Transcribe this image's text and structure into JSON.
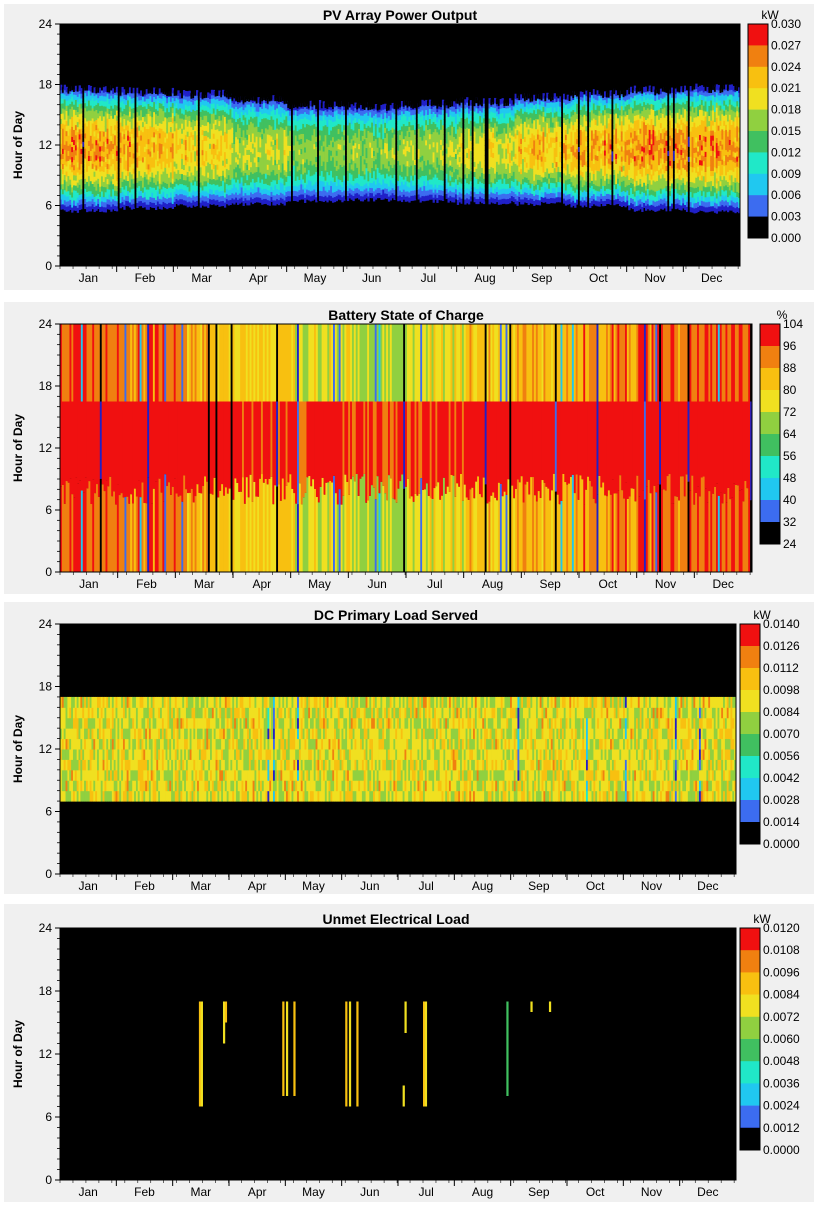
{
  "chart_data": [
    {
      "type": "heatmap",
      "title": "PV Array Power Output",
      "ylabel": "Hour of Day",
      "xlabel": "",
      "x_tick_labels": [
        "Jan",
        "Feb",
        "Mar",
        "Apr",
        "May",
        "Jun",
        "Jul",
        "Aug",
        "Sep",
        "Oct",
        "Nov",
        "Dec"
      ],
      "y_ticks": [
        0,
        6,
        12,
        18,
        24
      ],
      "ylim": [
        0,
        24
      ],
      "colorbar_unit": "kW",
      "colorbar_ticks": [
        "0.030",
        "0.027",
        "0.024",
        "0.021",
        "0.018",
        "0.015",
        "0.012",
        "0.009",
        "0.006",
        "0.003",
        "0.000"
      ],
      "colormap": [
        "#000000",
        "#2020c8",
        "#3c6cf0",
        "#20c8f0",
        "#20e8c8",
        "#40c060",
        "#90d040",
        "#f0e020",
        "#f8c010",
        "#f08010",
        "#f01010"
      ],
      "monthly_profile": {
        "months": [
          "Jan",
          "Feb",
          "Mar",
          "Apr",
          "May",
          "Jun",
          "Jul",
          "Aug",
          "Sep",
          "Oct",
          "Nov",
          "Dec"
        ],
        "sunrise_hour": [
          5.5,
          5.8,
          6.0,
          6.2,
          6.5,
          6.6,
          6.5,
          6.3,
          6.2,
          6.0,
          5.6,
          5.4
        ],
        "sunset_hour": [
          17.8,
          17.6,
          17.3,
          16.8,
          16.3,
          16.1,
          16.3,
          16.6,
          17.0,
          17.4,
          17.7,
          17.9
        ],
        "peak_kW": [
          0.027,
          0.026,
          0.024,
          0.021,
          0.019,
          0.019,
          0.02,
          0.022,
          0.025,
          0.026,
          0.027,
          0.027
        ]
      }
    },
    {
      "type": "heatmap",
      "title": "Battery State of Charge",
      "ylabel": "Hour of Day",
      "xlabel": "",
      "x_tick_labels": [
        "Jan",
        "Feb",
        "Mar",
        "Apr",
        "May",
        "Jun",
        "Jul",
        "Aug",
        "Sep",
        "Oct",
        "Nov",
        "Dec"
      ],
      "y_ticks": [
        0,
        6,
        12,
        18,
        24
      ],
      "ylim": [
        0,
        24
      ],
      "colorbar_unit": "%",
      "colorbar_ticks": [
        "104",
        "96",
        "88",
        "80",
        "72",
        "64",
        "56",
        "48",
        "40",
        "32",
        "24"
      ],
      "colormap": [
        "#000000",
        "#2020c8",
        "#3c6cf0",
        "#20c8f0",
        "#20e8c8",
        "#40c060",
        "#90d040",
        "#f0e020",
        "#f8c010",
        "#f08010",
        "#f01010"
      ],
      "monthly_profile": {
        "months": [
          "Jan",
          "Feb",
          "Mar",
          "Apr",
          "May",
          "Jun",
          "Jul",
          "Aug",
          "Sep",
          "Oct",
          "Nov",
          "Dec"
        ],
        "night_soc_pct": [
          96,
          94,
          86,
          82,
          78,
          76,
          78,
          84,
          88,
          92,
          96,
          97
        ],
        "day_soc_pct": [
          101,
          101,
          100,
          99,
          98,
          97,
          98,
          100,
          100,
          101,
          101,
          101
        ]
      }
    },
    {
      "type": "heatmap",
      "title": "DC Primary Load Served",
      "ylabel": "Hour of Day",
      "xlabel": "",
      "x_tick_labels": [
        "Jan",
        "Feb",
        "Mar",
        "Apr",
        "May",
        "Jun",
        "Jul",
        "Aug",
        "Sep",
        "Oct",
        "Nov",
        "Dec"
      ],
      "y_ticks": [
        0,
        6,
        12,
        18,
        24
      ],
      "ylim": [
        0,
        24
      ],
      "colorbar_unit": "kW",
      "colorbar_ticks": [
        "0.0140",
        "0.0126",
        "0.0112",
        "0.0098",
        "0.0084",
        "0.0070",
        "0.0056",
        "0.0042",
        "0.0028",
        "0.0014",
        "0.0000"
      ],
      "colormap": [
        "#000000",
        "#2020c8",
        "#3c6cf0",
        "#20c8f0",
        "#20e8c8",
        "#40c060",
        "#90d040",
        "#f0e020",
        "#f8c010",
        "#f08010",
        "#f01010"
      ],
      "load_hours": [
        7,
        17
      ],
      "typical_kW": 0.0098
    },
    {
      "type": "heatmap",
      "title": "Unmet Electrical Load",
      "ylabel": "Hour of Day",
      "xlabel": "",
      "x_tick_labels": [
        "Jan",
        "Feb",
        "Mar",
        "Apr",
        "May",
        "Jun",
        "Jul",
        "Aug",
        "Sep",
        "Oct",
        "Nov",
        "Dec"
      ],
      "y_ticks": [
        0,
        6,
        12,
        18,
        24
      ],
      "ylim": [
        0,
        24
      ],
      "colorbar_unit": "kW",
      "colorbar_ticks": [
        "0.0120",
        "0.0108",
        "0.0096",
        "0.0084",
        "0.0072",
        "0.0060",
        "0.0048",
        "0.0036",
        "0.0024",
        "0.0012",
        "0.0000"
      ],
      "colormap": [
        "#000000",
        "#2020c8",
        "#3c6cf0",
        "#20c8f0",
        "#20e8c8",
        "#40c060",
        "#90d040",
        "#f0e020",
        "#f8c010",
        "#f08010",
        "#f01010"
      ],
      "unmet_events": [
        {
          "day": 75,
          "from_hour": 7,
          "to_hour": 17,
          "kW": 0.009
        },
        {
          "day": 76,
          "from_hour": 7,
          "to_hour": 17,
          "kW": 0.0084
        },
        {
          "day": 88,
          "from_hour": 13,
          "to_hour": 17,
          "kW": 0.008
        },
        {
          "day": 89,
          "from_hour": 15,
          "to_hour": 17,
          "kW": 0.0096
        },
        {
          "day": 120,
          "from_hour": 8,
          "to_hour": 17,
          "kW": 0.0088
        },
        {
          "day": 122,
          "from_hour": 8,
          "to_hour": 17,
          "kW": 0.0084
        },
        {
          "day": 126,
          "from_hour": 8,
          "to_hour": 17,
          "kW": 0.0092
        },
        {
          "day": 154,
          "from_hour": 7,
          "to_hour": 17,
          "kW": 0.009
        },
        {
          "day": 156,
          "from_hour": 7,
          "to_hour": 17,
          "kW": 0.0084
        },
        {
          "day": 160,
          "from_hour": 7,
          "to_hour": 17,
          "kW": 0.0096
        },
        {
          "day": 185,
          "from_hour": 7,
          "to_hour": 9,
          "kW": 0.008
        },
        {
          "day": 186,
          "from_hour": 14,
          "to_hour": 17,
          "kW": 0.0084
        },
        {
          "day": 196,
          "from_hour": 7,
          "to_hour": 17,
          "kW": 0.009
        },
        {
          "day": 197,
          "from_hour": 7,
          "to_hour": 17,
          "kW": 0.0084
        },
        {
          "day": 241,
          "from_hour": 8,
          "to_hour": 17,
          "kW": 0.006
        },
        {
          "day": 254,
          "from_hour": 16,
          "to_hour": 17,
          "kW": 0.0084
        },
        {
          "day": 264,
          "from_hour": 16,
          "to_hour": 17,
          "kW": 0.008
        }
      ]
    }
  ]
}
